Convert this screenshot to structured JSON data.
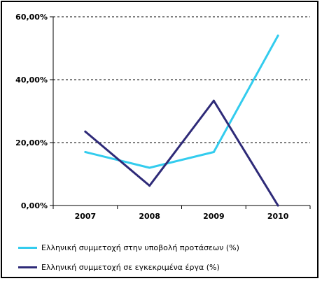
{
  "chart_data": {
    "type": "line",
    "categories": [
      "2007",
      "2008",
      "2009",
      "2010"
    ],
    "ylim": [
      0,
      60
    ],
    "yticks": [
      0,
      20,
      40,
      60
    ],
    "ytick_labels": [
      "0,00%",
      "20,00%",
      "40,00%",
      "60,00%"
    ],
    "grid": "horizontal-dashed",
    "legend_placement": "bottom",
    "series": [
      {
        "name": "Ελληνική συμμετοχή στην υποβολή προτάσεων (%)",
        "color": "#33CCEE",
        "values": [
          17,
          12,
          17,
          54
        ]
      },
      {
        "name": "Ελληνική συμμετοχή σε εγκεκριμένα έργα (%)",
        "color": "#2E2A78",
        "values": [
          23.5,
          6.3,
          33.3,
          0
        ]
      }
    ]
  }
}
